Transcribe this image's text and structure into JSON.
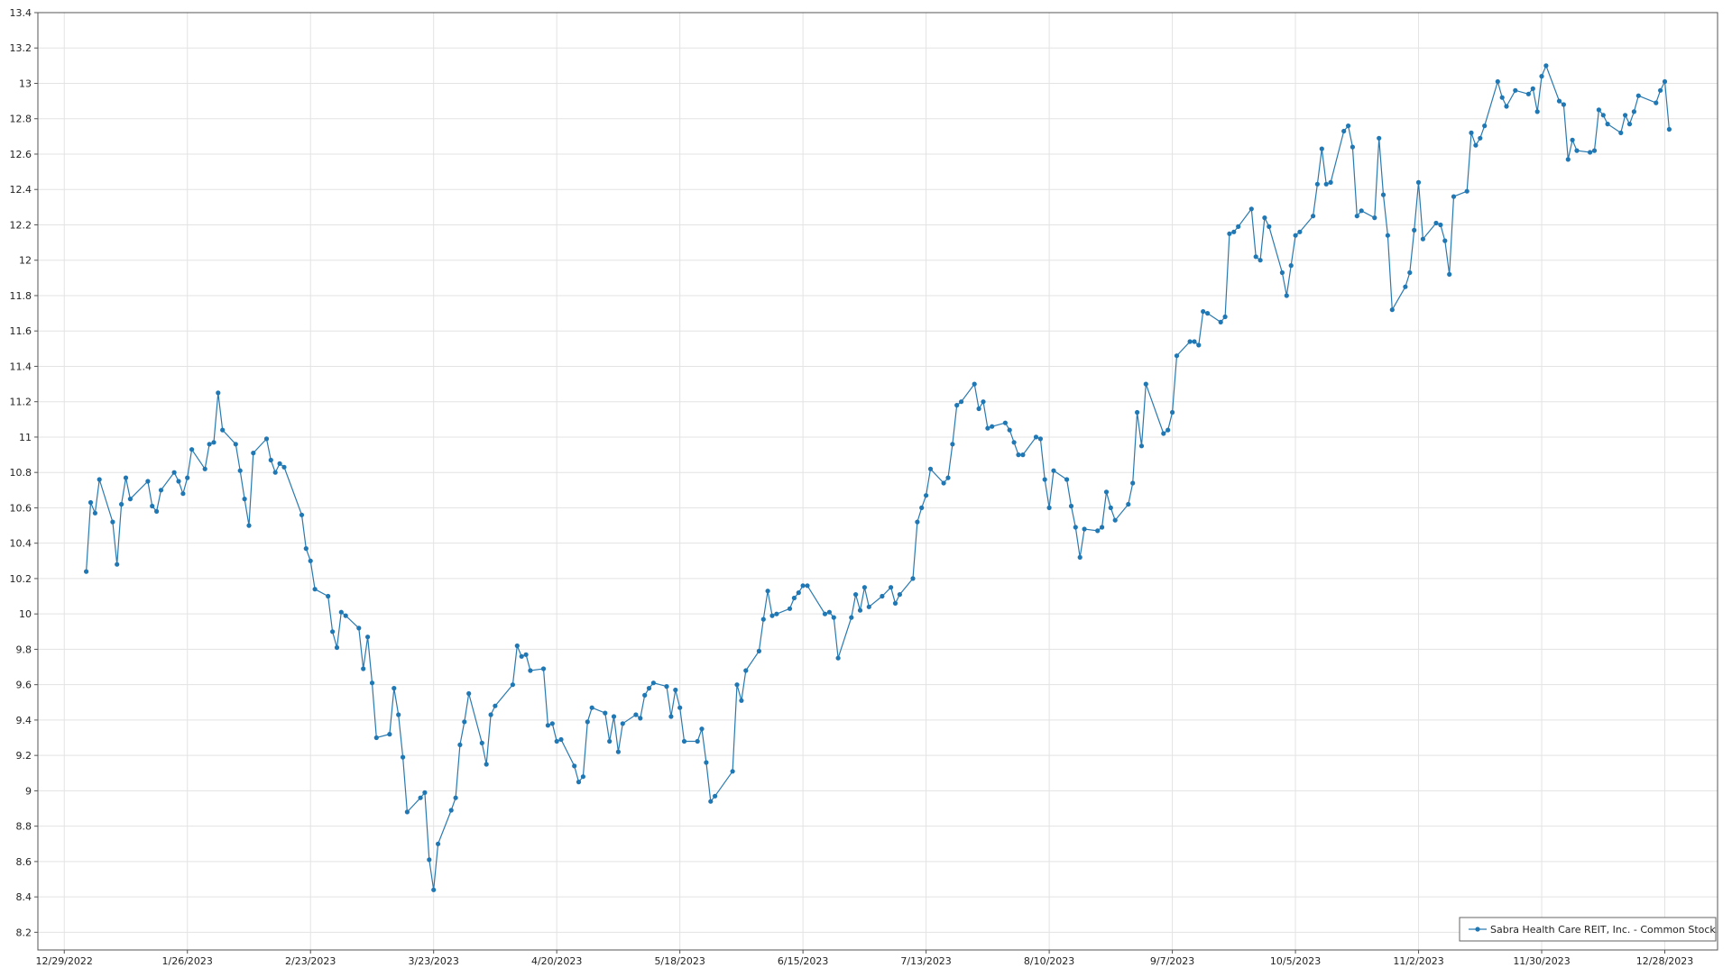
{
  "chart_data": {
    "type": "line",
    "title": "",
    "xlabel": "",
    "ylabel": "",
    "ylim": [
      8.1,
      13.4
    ],
    "y_ticks": [
      8.2,
      8.4,
      8.6,
      8.8,
      9,
      9.2,
      9.4,
      9.6,
      9.8,
      10,
      10.2,
      10.4,
      10.6,
      10.8,
      11,
      11.2,
      11.4,
      11.6,
      11.8,
      12,
      12.2,
      12.4,
      12.6,
      12.8,
      13,
      13.2,
      13.4
    ],
    "xlim": [
      "2022-12-23",
      "2024-01-09"
    ],
    "x_ticks": [
      {
        "date": "2022-12-29",
        "label": "12/29/2022"
      },
      {
        "date": "2023-01-26",
        "label": "1/26/2023"
      },
      {
        "date": "2023-02-23",
        "label": "2/23/2023"
      },
      {
        "date": "2023-03-23",
        "label": "3/23/2023"
      },
      {
        "date": "2023-04-20",
        "label": "4/20/2023"
      },
      {
        "date": "2023-05-18",
        "label": "5/18/2023"
      },
      {
        "date": "2023-06-15",
        "label": "6/15/2023"
      },
      {
        "date": "2023-07-13",
        "label": "7/13/2023"
      },
      {
        "date": "2023-08-10",
        "label": "8/10/2023"
      },
      {
        "date": "2023-09-07",
        "label": "9/7/2023"
      },
      {
        "date": "2023-10-05",
        "label": "10/5/2023"
      },
      {
        "date": "2023-11-02",
        "label": "11/2/2023"
      },
      {
        "date": "2023-11-30",
        "label": "11/30/2023"
      },
      {
        "date": "2023-12-28",
        "label": "12/28/2023"
      }
    ],
    "grid": true,
    "legend_position": "bottom-right",
    "series": [
      {
        "name": "Sabra Health Care REIT, Inc. - Common Stock",
        "color": "#1f77b4",
        "points": [
          [
            "2023-01-03",
            10.24
          ],
          [
            "2023-01-04",
            10.63
          ],
          [
            "2023-01-05",
            10.57
          ],
          [
            "2023-01-06",
            10.76
          ],
          [
            "2023-01-09",
            10.52
          ],
          [
            "2023-01-10",
            10.28
          ],
          [
            "2023-01-11",
            10.62
          ],
          [
            "2023-01-12",
            10.77
          ],
          [
            "2023-01-13",
            10.65
          ],
          [
            "2023-01-17",
            10.75
          ],
          [
            "2023-01-18",
            10.61
          ],
          [
            "2023-01-19",
            10.58
          ],
          [
            "2023-01-20",
            10.7
          ],
          [
            "2023-01-23",
            10.8
          ],
          [
            "2023-01-24",
            10.75
          ],
          [
            "2023-01-25",
            10.68
          ],
          [
            "2023-01-26",
            10.77
          ],
          [
            "2023-01-27",
            10.93
          ],
          [
            "2023-01-30",
            10.82
          ],
          [
            "2023-01-31",
            10.96
          ],
          [
            "2023-02-01",
            10.97
          ],
          [
            "2023-02-02",
            11.25
          ],
          [
            "2023-02-03",
            11.04
          ],
          [
            "2023-02-06",
            10.96
          ],
          [
            "2023-02-07",
            10.81
          ],
          [
            "2023-02-08",
            10.65
          ],
          [
            "2023-02-09",
            10.5
          ],
          [
            "2023-02-10",
            10.91
          ],
          [
            "2023-02-13",
            10.99
          ],
          [
            "2023-02-14",
            10.87
          ],
          [
            "2023-02-15",
            10.8
          ],
          [
            "2023-02-16",
            10.85
          ],
          [
            "2023-02-17",
            10.83
          ],
          [
            "2023-02-21",
            10.56
          ],
          [
            "2023-02-22",
            10.37
          ],
          [
            "2023-02-23",
            10.3
          ],
          [
            "2023-02-24",
            10.14
          ],
          [
            "2023-02-27",
            10.1
          ],
          [
            "2023-02-28",
            9.9
          ],
          [
            "2023-03-01",
            9.81
          ],
          [
            "2023-03-02",
            10.01
          ],
          [
            "2023-03-03",
            9.99
          ],
          [
            "2023-03-06",
            9.92
          ],
          [
            "2023-03-07",
            9.69
          ],
          [
            "2023-03-08",
            9.87
          ],
          [
            "2023-03-09",
            9.61
          ],
          [
            "2023-03-10",
            9.3
          ],
          [
            "2023-03-13",
            9.32
          ],
          [
            "2023-03-14",
            9.58
          ],
          [
            "2023-03-15",
            9.43
          ],
          [
            "2023-03-16",
            9.19
          ],
          [
            "2023-03-17",
            8.88
          ],
          [
            "2023-03-20",
            8.96
          ],
          [
            "2023-03-21",
            8.99
          ],
          [
            "2023-03-22",
            8.61
          ],
          [
            "2023-03-23",
            8.44
          ],
          [
            "2023-03-24",
            8.7
          ],
          [
            "2023-03-27",
            8.89
          ],
          [
            "2023-03-28",
            8.96
          ],
          [
            "2023-03-29",
            9.26
          ],
          [
            "2023-03-30",
            9.39
          ],
          [
            "2023-03-31",
            9.55
          ],
          [
            "2023-04-03",
            9.27
          ],
          [
            "2023-04-04",
            9.15
          ],
          [
            "2023-04-05",
            9.43
          ],
          [
            "2023-04-06",
            9.48
          ],
          [
            "2023-04-10",
            9.6
          ],
          [
            "2023-04-11",
            9.82
          ],
          [
            "2023-04-12",
            9.76
          ],
          [
            "2023-04-13",
            9.77
          ],
          [
            "2023-04-14",
            9.68
          ],
          [
            "2023-04-17",
            9.69
          ],
          [
            "2023-04-18",
            9.37
          ],
          [
            "2023-04-19",
            9.38
          ],
          [
            "2023-04-20",
            9.28
          ],
          [
            "2023-04-21",
            9.29
          ],
          [
            "2023-04-24",
            9.14
          ],
          [
            "2023-04-25",
            9.05
          ],
          [
            "2023-04-26",
            9.08
          ],
          [
            "2023-04-27",
            9.39
          ],
          [
            "2023-04-28",
            9.47
          ],
          [
            "2023-05-01",
            9.44
          ],
          [
            "2023-05-02",
            9.28
          ],
          [
            "2023-05-03",
            9.42
          ],
          [
            "2023-05-04",
            9.22
          ],
          [
            "2023-05-05",
            9.38
          ],
          [
            "2023-05-08",
            9.43
          ],
          [
            "2023-05-09",
            9.41
          ],
          [
            "2023-05-10",
            9.54
          ],
          [
            "2023-05-11",
            9.58
          ],
          [
            "2023-05-12",
            9.61
          ],
          [
            "2023-05-15",
            9.59
          ],
          [
            "2023-05-16",
            9.42
          ],
          [
            "2023-05-17",
            9.57
          ],
          [
            "2023-05-18",
            9.47
          ],
          [
            "2023-05-19",
            9.28
          ],
          [
            "2023-05-22",
            9.28
          ],
          [
            "2023-05-23",
            9.35
          ],
          [
            "2023-05-24",
            9.16
          ],
          [
            "2023-05-25",
            8.94
          ],
          [
            "2023-05-26",
            8.97
          ],
          [
            "2023-05-30",
            9.11
          ],
          [
            "2023-05-31",
            9.6
          ],
          [
            "2023-06-01",
            9.51
          ],
          [
            "2023-06-02",
            9.68
          ],
          [
            "2023-06-05",
            9.79
          ],
          [
            "2023-06-06",
            9.97
          ],
          [
            "2023-06-07",
            10.13
          ],
          [
            "2023-06-08",
            9.99
          ],
          [
            "2023-06-09",
            10.0
          ],
          [
            "2023-06-12",
            10.03
          ],
          [
            "2023-06-13",
            10.09
          ],
          [
            "2023-06-14",
            10.12
          ],
          [
            "2023-06-15",
            10.16
          ],
          [
            "2023-06-16",
            10.16
          ],
          [
            "2023-06-20",
            10.0
          ],
          [
            "2023-06-21",
            10.01
          ],
          [
            "2023-06-22",
            9.98
          ],
          [
            "2023-06-23",
            9.75
          ],
          [
            "2023-06-26",
            9.98
          ],
          [
            "2023-06-27",
            10.11
          ],
          [
            "2023-06-28",
            10.02
          ],
          [
            "2023-06-29",
            10.15
          ],
          [
            "2023-06-30",
            10.04
          ],
          [
            "2023-07-03",
            10.1
          ],
          [
            "2023-07-05",
            10.15
          ],
          [
            "2023-07-06",
            10.06
          ],
          [
            "2023-07-07",
            10.11
          ],
          [
            "2023-07-10",
            10.2
          ],
          [
            "2023-07-11",
            10.52
          ],
          [
            "2023-07-12",
            10.6
          ],
          [
            "2023-07-13",
            10.67
          ],
          [
            "2023-07-14",
            10.82
          ],
          [
            "2023-07-17",
            10.74
          ],
          [
            "2023-07-18",
            10.77
          ],
          [
            "2023-07-19",
            10.96
          ],
          [
            "2023-07-20",
            11.18
          ],
          [
            "2023-07-21",
            11.2
          ],
          [
            "2023-07-24",
            11.3
          ],
          [
            "2023-07-25",
            11.16
          ],
          [
            "2023-07-26",
            11.2
          ],
          [
            "2023-07-27",
            11.05
          ],
          [
            "2023-07-28",
            11.06
          ],
          [
            "2023-07-31",
            11.08
          ],
          [
            "2023-08-01",
            11.04
          ],
          [
            "2023-08-02",
            10.97
          ],
          [
            "2023-08-03",
            10.9
          ],
          [
            "2023-08-04",
            10.9
          ],
          [
            "2023-08-07",
            11.0
          ],
          [
            "2023-08-08",
            10.99
          ],
          [
            "2023-08-09",
            10.76
          ],
          [
            "2023-08-10",
            10.6
          ],
          [
            "2023-08-11",
            10.81
          ],
          [
            "2023-08-14",
            10.76
          ],
          [
            "2023-08-15",
            10.61
          ],
          [
            "2023-08-16",
            10.49
          ],
          [
            "2023-08-17",
            10.32
          ],
          [
            "2023-08-18",
            10.48
          ],
          [
            "2023-08-21",
            10.47
          ],
          [
            "2023-08-22",
            10.49
          ],
          [
            "2023-08-23",
            10.69
          ],
          [
            "2023-08-24",
            10.6
          ],
          [
            "2023-08-25",
            10.53
          ],
          [
            "2023-08-28",
            10.62
          ],
          [
            "2023-08-29",
            10.74
          ],
          [
            "2023-08-30",
            11.14
          ],
          [
            "2023-08-31",
            10.95
          ],
          [
            "2023-09-01",
            11.3
          ],
          [
            "2023-09-05",
            11.02
          ],
          [
            "2023-09-06",
            11.04
          ],
          [
            "2023-09-07",
            11.14
          ],
          [
            "2023-09-08",
            11.46
          ],
          [
            "2023-09-11",
            11.54
          ],
          [
            "2023-09-12",
            11.54
          ],
          [
            "2023-09-13",
            11.52
          ],
          [
            "2023-09-14",
            11.71
          ],
          [
            "2023-09-15",
            11.7
          ],
          [
            "2023-09-18",
            11.65
          ],
          [
            "2023-09-19",
            11.68
          ],
          [
            "2023-09-20",
            12.15
          ],
          [
            "2023-09-21",
            12.16
          ],
          [
            "2023-09-22",
            12.19
          ],
          [
            "2023-09-25",
            12.29
          ],
          [
            "2023-09-26",
            12.02
          ],
          [
            "2023-09-27",
            12.0
          ],
          [
            "2023-09-28",
            12.24
          ],
          [
            "2023-09-29",
            12.19
          ],
          [
            "2023-10-02",
            11.93
          ],
          [
            "2023-10-03",
            11.8
          ],
          [
            "2023-10-04",
            11.97
          ],
          [
            "2023-10-05",
            12.14
          ],
          [
            "2023-10-06",
            12.16
          ],
          [
            "2023-10-09",
            12.25
          ],
          [
            "2023-10-10",
            12.43
          ],
          [
            "2023-10-11",
            12.63
          ],
          [
            "2023-10-12",
            12.43
          ],
          [
            "2023-10-13",
            12.44
          ],
          [
            "2023-10-16",
            12.73
          ],
          [
            "2023-10-17",
            12.76
          ],
          [
            "2023-10-18",
            12.64
          ],
          [
            "2023-10-19",
            12.25
          ],
          [
            "2023-10-20",
            12.28
          ],
          [
            "2023-10-23",
            12.24
          ],
          [
            "2023-10-24",
            12.69
          ],
          [
            "2023-10-25",
            12.37
          ],
          [
            "2023-10-26",
            12.14
          ],
          [
            "2023-10-27",
            11.72
          ],
          [
            "2023-10-30",
            11.85
          ],
          [
            "2023-10-31",
            11.93
          ],
          [
            "2023-11-01",
            12.17
          ],
          [
            "2023-11-02",
            12.44
          ],
          [
            "2023-11-03",
            12.12
          ],
          [
            "2023-11-06",
            12.21
          ],
          [
            "2023-11-07",
            12.2
          ],
          [
            "2023-11-08",
            12.11
          ],
          [
            "2023-11-09",
            11.92
          ],
          [
            "2023-11-10",
            12.36
          ],
          [
            "2023-11-13",
            12.39
          ],
          [
            "2023-11-14",
            12.72
          ],
          [
            "2023-11-15",
            12.65
          ],
          [
            "2023-11-16",
            12.69
          ],
          [
            "2023-11-17",
            12.76
          ],
          [
            "2023-11-20",
            13.01
          ],
          [
            "2023-11-21",
            12.92
          ],
          [
            "2023-11-22",
            12.87
          ],
          [
            "2023-11-24",
            12.96
          ],
          [
            "2023-11-27",
            12.94
          ],
          [
            "2023-11-28",
            12.97
          ],
          [
            "2023-11-29",
            12.84
          ],
          [
            "2023-11-30",
            13.04
          ],
          [
            "2023-12-01",
            13.1
          ],
          [
            "2023-12-04",
            12.9
          ],
          [
            "2023-12-05",
            12.88
          ],
          [
            "2023-12-06",
            12.57
          ],
          [
            "2023-12-07",
            12.68
          ],
          [
            "2023-12-08",
            12.62
          ],
          [
            "2023-12-11",
            12.61
          ],
          [
            "2023-12-12",
            12.62
          ],
          [
            "2023-12-13",
            12.85
          ],
          [
            "2023-12-14",
            12.82
          ],
          [
            "2023-12-15",
            12.77
          ],
          [
            "2023-12-18",
            12.72
          ],
          [
            "2023-12-19",
            12.82
          ],
          [
            "2023-12-20",
            12.77
          ],
          [
            "2023-12-21",
            12.84
          ],
          [
            "2023-12-22",
            12.93
          ],
          [
            "2023-12-26",
            12.89
          ],
          [
            "2023-12-27",
            12.96
          ],
          [
            "2023-12-28",
            13.01
          ],
          [
            "2023-12-29",
            12.74
          ]
        ]
      }
    ]
  }
}
